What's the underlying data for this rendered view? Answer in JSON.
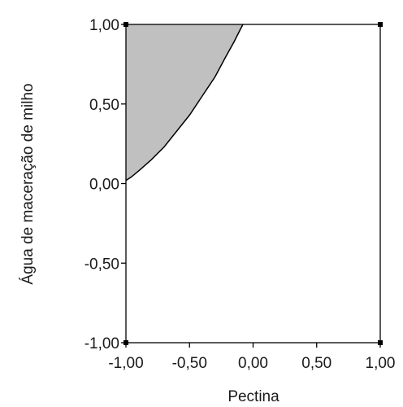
{
  "chart_data": {
    "type": "area",
    "title": "",
    "xlabel": "Pectina",
    "ylabel": "Água de maceração de milho",
    "xlim": [
      -1.0,
      1.0
    ],
    "ylim": [
      -1.0,
      1.0
    ],
    "grid": false,
    "xticks": [
      {
        "value": -1.0,
        "label": "-1,00"
      },
      {
        "value": -0.5,
        "label": "-0,50"
      },
      {
        "value": 0.0,
        "label": "0,00"
      },
      {
        "value": 0.5,
        "label": "0,50"
      },
      {
        "value": 1.0,
        "label": "1,00"
      }
    ],
    "yticks": [
      {
        "value": 1.0,
        "label": "1,00"
      },
      {
        "value": 0.5,
        "label": "0,50"
      },
      {
        "value": 0.0,
        "label": "0,00"
      },
      {
        "value": -0.5,
        "label": "-0,50"
      },
      {
        "value": -1.0,
        "label": "-1,00"
      }
    ],
    "region": {
      "fill": "#c0c0c0",
      "boundary": [
        {
          "x": -1.0,
          "y": 1.0
        },
        {
          "x": -1.0,
          "y": 0.02
        },
        {
          "x": -0.96,
          "y": 0.04
        },
        {
          "x": -0.9,
          "y": 0.08
        },
        {
          "x": -0.8,
          "y": 0.15
        },
        {
          "x": -0.7,
          "y": 0.23
        },
        {
          "x": -0.6,
          "y": 0.33
        },
        {
          "x": -0.5,
          "y": 0.43
        },
        {
          "x": -0.4,
          "y": 0.55
        },
        {
          "x": -0.3,
          "y": 0.67
        },
        {
          "x": -0.22,
          "y": 0.79
        },
        {
          "x": -0.15,
          "y": 0.89
        },
        {
          "x": -0.1,
          "y": 0.97
        },
        {
          "x": -0.08,
          "y": 1.0
        }
      ]
    },
    "colors": {
      "axis": "#000000",
      "region_fill": "#c0c0c0",
      "region_edge": "#000000",
      "text": "#1a1a1a"
    }
  }
}
